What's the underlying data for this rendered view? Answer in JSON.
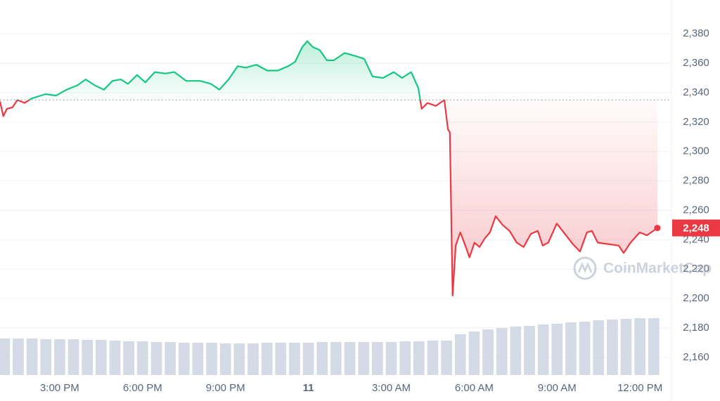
{
  "chart_data": {
    "type": "line",
    "x": [
      0.84,
      0.96,
      1.09,
      1.29,
      1.47,
      1.73,
      1.98,
      2.49,
      2.87,
      3.25,
      3.64,
      3.94,
      4.27,
      4.6,
      4.91,
      5.21,
      5.47,
      5.8,
      6.1,
      6.44,
      6.82,
      7.15,
      7.58,
      8.09,
      8.47,
      8.78,
      9.11,
      9.44,
      9.74,
      10.12,
      10.51,
      10.89,
      11.27,
      11.52,
      11.78,
      11.96,
      12.16,
      12.41,
      12.67,
      12.92,
      13.31,
      13.69,
      14.02,
      14.32,
      14.7,
      15.09,
      15.39,
      15.72,
      15.98,
      16.1,
      16.31,
      16.61,
      16.92,
      17.05,
      17.12,
      17.22,
      17.33,
      17.5,
      17.68,
      17.83,
      18.01,
      18.19,
      18.39,
      18.57,
      18.78,
      19.03,
      19.28,
      19.54,
      19.79,
      20.05,
      20.3,
      20.48,
      20.68,
      20.99,
      21.32,
      21.57,
      21.83,
      22.08,
      22.26,
      22.47,
      22.85,
      23.23,
      23.41,
      23.66,
      23.99,
      24.25,
      24.63
    ],
    "values": [
      2334,
      2324,
      2329,
      2330,
      2335,
      2333,
      2336,
      2339,
      2338,
      2342,
      2345,
      2349,
      2345,
      2342,
      2348,
      2349,
      2346,
      2352,
      2347,
      2354,
      2353,
      2354,
      2348,
      2348,
      2346,
      2342,
      2349,
      2358,
      2357,
      2359,
      2355,
      2355,
      2358,
      2361,
      2371,
      2375,
      2371,
      2369,
      2362,
      2362,
      2367,
      2365,
      2363,
      2351,
      2350,
      2354,
      2350,
      2354,
      2343,
      2329,
      2333,
      2331,
      2335,
      2315,
      2313,
      2202,
      2236,
      2245,
      2236,
      2228,
      2238,
      2235,
      2241,
      2245,
      2256,
      2250,
      2246,
      2238,
      2235,
      2244,
      2246,
      2236,
      2238,
      2251,
      2243,
      2237,
      2232,
      2245,
      2246,
      2238,
      2237,
      2236,
      2231,
      2238,
      2245,
      2243,
      2248
    ],
    "baseline": 2335,
    "up_color": "#16c784",
    "down_color": "#ea3943",
    "last_price": {
      "value": 2248,
      "label": "2,248"
    },
    "xlim": [
      0.84,
      25.14
    ],
    "xticks": [
      {
        "value": 3,
        "label": "3:00 PM"
      },
      {
        "value": 6,
        "label": "6:00 PM"
      },
      {
        "value": 9,
        "label": "9:00 PM"
      },
      {
        "value": 12,
        "label": "11"
      },
      {
        "value": 15,
        "label": "3:00 AM"
      },
      {
        "value": 18,
        "label": "6:00 AM"
      },
      {
        "value": 21,
        "label": "9:00 AM"
      },
      {
        "value": 24,
        "label": "12:00 PM"
      }
    ],
    "ylim": [
      2148,
      2403
    ],
    "yticks": [
      {
        "value": 2160,
        "label": "2,160"
      },
      {
        "value": 2180,
        "label": "2,180"
      },
      {
        "value": 2200,
        "label": "2,200"
      },
      {
        "value": 2220,
        "label": "2,220"
      },
      {
        "value": 2240,
        "label": "2,240"
      },
      {
        "value": 2260,
        "label": "2,260"
      },
      {
        "value": 2280,
        "label": "2,280"
      },
      {
        "value": 2300,
        "label": "2,300"
      },
      {
        "value": 2320,
        "label": "2,320"
      },
      {
        "value": 2340,
        "label": "2,340"
      },
      {
        "value": 2360,
        "label": "2,360"
      },
      {
        "value": 2380,
        "label": "2,380"
      }
    ],
    "grid": true,
    "volume": {
      "x": [
        1,
        1.5,
        2,
        2.5,
        3,
        3.5,
        4,
        4.5,
        5,
        5.5,
        6,
        6.5,
        7,
        7.5,
        8,
        8.5,
        9,
        9.5,
        10,
        10.5,
        11,
        11.5,
        12,
        12.5,
        13,
        13.5,
        14,
        14.5,
        15,
        15.5,
        16,
        16.5,
        17,
        17.5,
        18,
        18.5,
        19,
        19.5,
        20,
        20.5,
        21,
        21.5,
        22,
        22.5,
        23,
        23.5,
        24,
        24.5
      ],
      "values": [
        52,
        52,
        52,
        51,
        51,
        51,
        50,
        50,
        49,
        48,
        48,
        47,
        47,
        46,
        46,
        46,
        45,
        45,
        45,
        46,
        46,
        46,
        46,
        47,
        47,
        47,
        47,
        47,
        47,
        48,
        48,
        49,
        49,
        58,
        62,
        65,
        67,
        69,
        70,
        72,
        73,
        75,
        76,
        78,
        79,
        80,
        81,
        81
      ],
      "color": "#d5dbe6",
      "y2lim": [
        0,
        100
      ]
    },
    "watermark": "CoinMarketCap"
  }
}
